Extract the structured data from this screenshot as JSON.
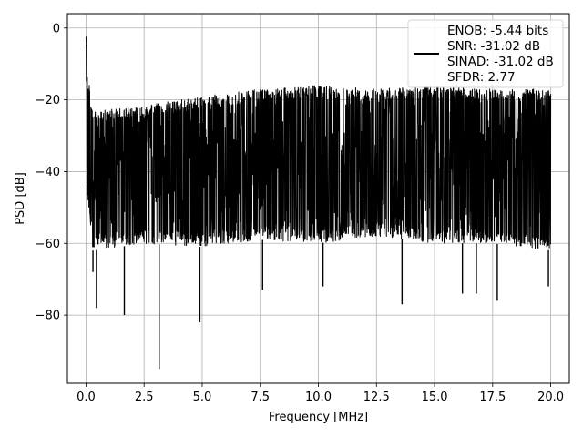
{
  "chart_data": {
    "type": "line",
    "title": "",
    "xlabel": "Frequency [MHz]",
    "ylabel": "PSD [dB]",
    "xlim": [
      -0.8,
      20.8
    ],
    "ylim": [
      -99,
      4
    ],
    "xticks": [
      0.0,
      2.5,
      5.0,
      7.5,
      10.0,
      12.5,
      15.0,
      17.5,
      20.0
    ],
    "xtick_labels": [
      "0.0",
      "2.5",
      "5.0",
      "7.5",
      "10.0",
      "12.5",
      "15.0",
      "17.5",
      "20.0"
    ],
    "yticks": [
      0,
      -20,
      -40,
      -60,
      -80
    ],
    "ytick_labels": [
      "0",
      "−20",
      "−40",
      "−60",
      "−80"
    ],
    "grid": true,
    "legend": {
      "placement": "top-right",
      "entries": [
        "ENOB: -5.44 bits",
        "SNR: -31.02 dB",
        "SINAD: -31.02 dB",
        "SFDR: 2.77"
      ]
    },
    "series": [
      {
        "color": "#000000",
        "envelope_upper": [
          [
            0.0,
            0
          ],
          [
            0.1,
            -14
          ],
          [
            0.3,
            -23
          ],
          [
            2.5,
            -22
          ],
          [
            3.0,
            -21
          ],
          [
            5.0,
            -19
          ],
          [
            7.5,
            -17
          ],
          [
            10.0,
            -16
          ],
          [
            12.5,
            -17
          ],
          [
            15.0,
            -16
          ],
          [
            17.5,
            -17
          ],
          [
            20.0,
            -17
          ]
        ],
        "envelope_lower": [
          [
            0.0,
            -43
          ],
          [
            0.3,
            -62
          ],
          [
            2.5,
            -60
          ],
          [
            5.0,
            -61
          ],
          [
            7.5,
            -59
          ],
          [
            10.0,
            -60
          ],
          [
            12.5,
            -58
          ],
          [
            15.0,
            -60
          ],
          [
            17.5,
            -60
          ],
          [
            20.0,
            -62
          ]
        ],
        "dips": [
          [
            0.3,
            -68
          ],
          [
            0.45,
            -78
          ],
          [
            1.65,
            -80
          ],
          [
            3.15,
            -95
          ],
          [
            4.9,
            -82
          ],
          [
            7.6,
            -73
          ],
          [
            10.2,
            -72
          ],
          [
            13.6,
            -77
          ],
          [
            16.2,
            -74
          ],
          [
            16.8,
            -74
          ],
          [
            17.7,
            -76
          ],
          [
            19.9,
            -72
          ]
        ]
      }
    ]
  }
}
